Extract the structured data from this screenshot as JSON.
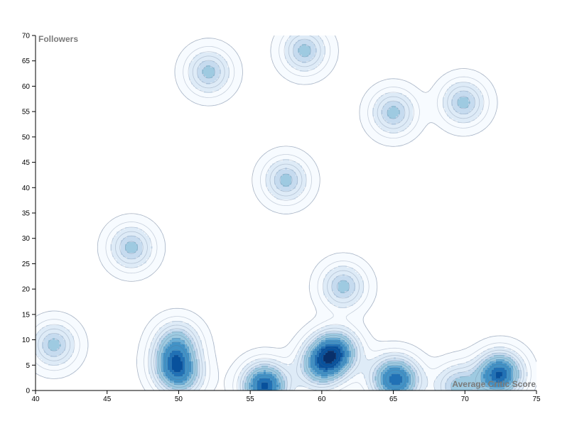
{
  "chart_data": {
    "type": "density-contour",
    "xlabel": "Average Critic Score",
    "ylabel": "Followers",
    "xlim": [
      40,
      75
    ],
    "ylim": [
      0,
      70
    ],
    "xticks": [
      40,
      45,
      50,
      55,
      60,
      65,
      70,
      75
    ],
    "yticks": [
      0,
      5,
      10,
      15,
      20,
      25,
      30,
      35,
      40,
      45,
      50,
      55,
      60,
      65,
      70
    ],
    "grid": false,
    "colorscale": [
      "#f7fbff",
      "#deebf7",
      "#c6dbef",
      "#9ecae1",
      "#6baed6",
      "#4292c6",
      "#2171b5",
      "#08519c",
      "#08306b"
    ],
    "points": [
      {
        "x": 41.3,
        "y": 9
      },
      {
        "x": 46.7,
        "y": 28.2
      },
      {
        "x": 49.6,
        "y": 5.2
      },
      {
        "x": 50.2,
        "y": 2.8
      },
      {
        "x": 49.9,
        "y": 9.5
      },
      {
        "x": 52.1,
        "y": 62.8
      },
      {
        "x": 56.0,
        "y": 1.2
      },
      {
        "x": 56.0,
        "y": 0.6
      },
      {
        "x": 57.5,
        "y": 41.5
      },
      {
        "x": 58.8,
        "y": 67.0
      },
      {
        "x": 60.5,
        "y": 7.0
      },
      {
        "x": 61.2,
        "y": 7.8
      },
      {
        "x": 61.5,
        "y": 20.5
      },
      {
        "x": 59.8,
        "y": 4.5
      },
      {
        "x": 64.8,
        "y": 2.4
      },
      {
        "x": 65.5,
        "y": 2.0
      },
      {
        "x": 65.0,
        "y": 54.8
      },
      {
        "x": 69.9,
        "y": 56.8
      },
      {
        "x": 69.5,
        "y": 0.8
      },
      {
        "x": 72.2,
        "y": 2.7
      },
      {
        "x": 72.6,
        "y": 3.6
      }
    ]
  }
}
